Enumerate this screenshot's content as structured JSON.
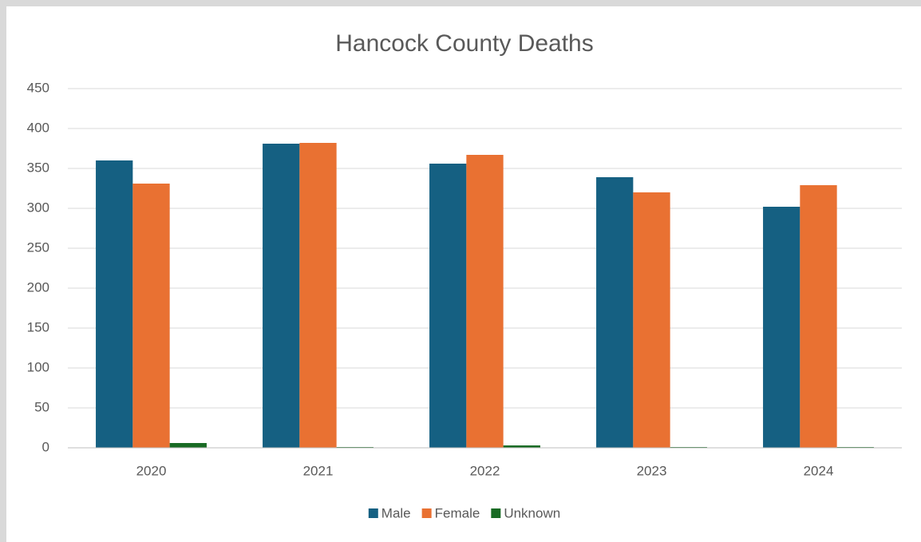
{
  "chart_data": {
    "type": "bar",
    "title": "Hancock County Deaths",
    "categories": [
      "2020",
      "2021",
      "2022",
      "2023",
      "2024"
    ],
    "series": [
      {
        "name": "Male",
        "color": "#156082",
        "values": [
          360,
          381,
          356,
          339,
          302
        ]
      },
      {
        "name": "Female",
        "color": "#e97132",
        "values": [
          331,
          382,
          367,
          320,
          329
        ]
      },
      {
        "name": "Unknown",
        "color": "#196b24",
        "values": [
          6,
          1,
          3,
          1,
          1
        ]
      }
    ],
    "ylim": [
      0,
      450
    ],
    "yticks": [
      0,
      50,
      100,
      150,
      200,
      250,
      300,
      350,
      400,
      450
    ],
    "grid": true,
    "legend": "bottom"
  }
}
